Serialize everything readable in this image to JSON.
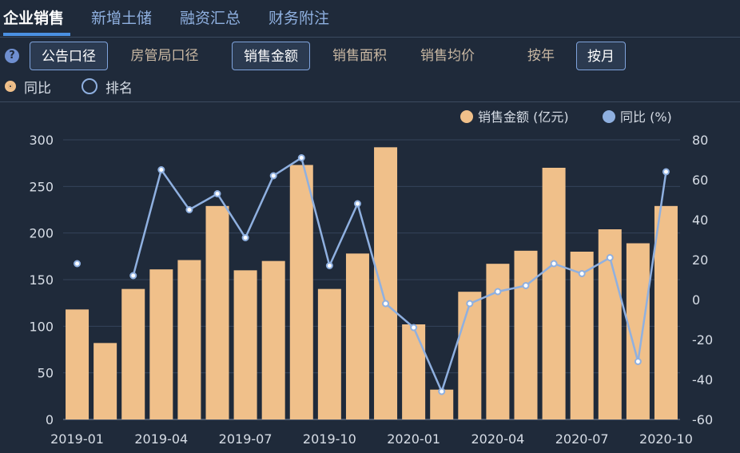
{
  "tabs": [
    {
      "label": "企业销售",
      "active": true
    },
    {
      "label": "新增土储",
      "active": false
    },
    {
      "label": "融资汇总",
      "active": false
    },
    {
      "label": "财务附注",
      "active": false
    }
  ],
  "help_icon": "?",
  "buttons": {
    "announce": "公告口径",
    "housing_bureau": "房管局口径",
    "sales_amount": "销售金额",
    "sales_area": "销售面积",
    "avg_price": "销售均价",
    "by_year": "按年",
    "by_month": "按月"
  },
  "radios": {
    "yoy": "同比",
    "rank": "排名"
  },
  "colors": {
    "bar": "#f0c08a",
    "line": "#8fb0e0",
    "background": "#1f2a3a",
    "tab_active": "#ffffff",
    "tab_inactive": "#8fb0e0"
  },
  "chart_data": {
    "type": "bar",
    "x": [
      "2019-01",
      "2019-02",
      "2019-03",
      "2019-04",
      "2019-05",
      "2019-06",
      "2019-07",
      "2019-08",
      "2019-09",
      "2019-10",
      "2019-11",
      "2019-12",
      "2020-01",
      "2020-02",
      "2020-03",
      "2020-04",
      "2020-05",
      "2020-06",
      "2020-07",
      "2020-08",
      "2020-09",
      "2020-10"
    ],
    "x_tick_labels": [
      "2019-01",
      "2019-04",
      "2019-07",
      "2019-10",
      "2020-01",
      "2020-04",
      "2020-07",
      "2020-10"
    ],
    "series": [
      {
        "name": "销售金额 (亿元)",
        "kind": "bar",
        "axis": "left",
        "values": [
          118,
          82,
          140,
          161,
          171,
          229,
          160,
          170,
          273,
          140,
          178,
          292,
          102,
          32,
          137,
          167,
          181,
          270,
          180,
          204,
          189,
          229
        ]
      },
      {
        "name": "同比 (%)",
        "kind": "line",
        "axis": "right",
        "values": [
          18,
          null,
          12,
          65,
          45,
          53,
          31,
          62,
          71,
          17,
          48,
          -2,
          -14,
          -46,
          -2,
          4,
          7,
          18,
          13,
          21,
          -31,
          64
        ]
      }
    ],
    "left_axis": {
      "ylim": [
        0,
        300
      ],
      "ticks": [
        0,
        50,
        100,
        150,
        200,
        250,
        300
      ]
    },
    "right_axis": {
      "ylim": [
        -60,
        80
      ],
      "ticks": [
        -60,
        -40,
        -20,
        0,
        20,
        40,
        60,
        80
      ]
    },
    "legend_position": "top-right",
    "grid": true
  }
}
